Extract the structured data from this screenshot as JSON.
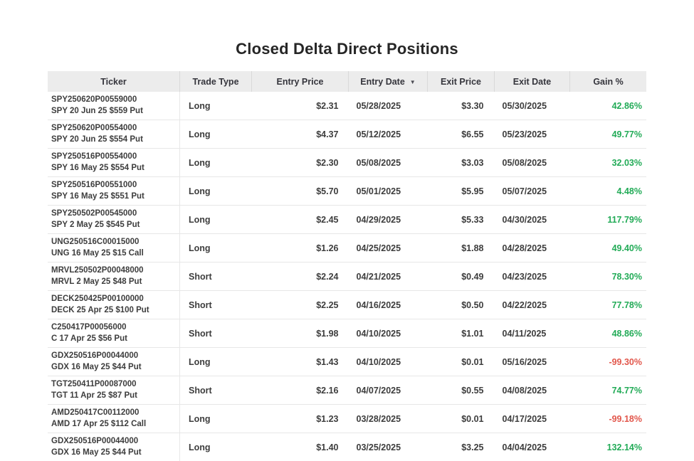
{
  "page": {
    "title": "Closed Delta Direct Positions"
  },
  "colors": {
    "header_bg": "#ececec",
    "header_divider": "#d9d9d9",
    "row_divider": "#e7e7e7",
    "text": "#3d3d3d",
    "header_text": "#35353c",
    "title": "#262626",
    "positive": "#22ab57",
    "negative": "#e2574c"
  },
  "table": {
    "sort_icon": "▼",
    "columns": [
      {
        "id": "ticker",
        "label": "Ticker"
      },
      {
        "id": "trade_type",
        "label": "Trade Type"
      },
      {
        "id": "entry_price",
        "label": "Entry Price"
      },
      {
        "id": "entry_date",
        "label": "Entry Date",
        "sorted": "desc"
      },
      {
        "id": "exit_price",
        "label": "Exit Price"
      },
      {
        "id": "exit_date",
        "label": "Exit Date"
      },
      {
        "id": "gain_pct",
        "label": "Gain %"
      }
    ],
    "rows": [
      {
        "ticker": "SPY250620P00559000",
        "description": "SPY 20 Jun 25 $559 Put",
        "trade_type": "Long",
        "entry_price": "$2.31",
        "entry_date": "05/28/2025",
        "exit_price": "$3.30",
        "exit_date": "05/30/2025",
        "gain_pct": "42.86%"
      },
      {
        "ticker": "SPY250620P00554000",
        "description": "SPY 20 Jun 25 $554 Put",
        "trade_type": "Long",
        "entry_price": "$4.37",
        "entry_date": "05/12/2025",
        "exit_price": "$6.55",
        "exit_date": "05/23/2025",
        "gain_pct": "49.77%"
      },
      {
        "ticker": "SPY250516P00554000",
        "description": "SPY 16 May 25 $554 Put",
        "trade_type": "Long",
        "entry_price": "$2.30",
        "entry_date": "05/08/2025",
        "exit_price": "$3.03",
        "exit_date": "05/08/2025",
        "gain_pct": "32.03%"
      },
      {
        "ticker": "SPY250516P00551000",
        "description": "SPY 16 May 25 $551 Put",
        "trade_type": "Long",
        "entry_price": "$5.70",
        "entry_date": "05/01/2025",
        "exit_price": "$5.95",
        "exit_date": "05/07/2025",
        "gain_pct": "4.48%"
      },
      {
        "ticker": "SPY250502P00545000",
        "description": "SPY 2 May 25 $545 Put",
        "trade_type": "Long",
        "entry_price": "$2.45",
        "entry_date": "04/29/2025",
        "exit_price": "$5.33",
        "exit_date": "04/30/2025",
        "gain_pct": "117.79%"
      },
      {
        "ticker": "UNG250516C00015000",
        "description": "UNG 16 May 25 $15 Call",
        "trade_type": "Long",
        "entry_price": "$1.26",
        "entry_date": "04/25/2025",
        "exit_price": "$1.88",
        "exit_date": "04/28/2025",
        "gain_pct": "49.40%"
      },
      {
        "ticker": "MRVL250502P00048000",
        "description": "MRVL 2 May 25 $48 Put",
        "trade_type": "Short",
        "entry_price": "$2.24",
        "entry_date": "04/21/2025",
        "exit_price": "$0.49",
        "exit_date": "04/23/2025",
        "gain_pct": "78.30%"
      },
      {
        "ticker": "DECK250425P00100000",
        "description": "DECK 25 Apr 25 $100 Put",
        "trade_type": "Short",
        "entry_price": "$2.25",
        "entry_date": "04/16/2025",
        "exit_price": "$0.50",
        "exit_date": "04/22/2025",
        "gain_pct": "77.78%"
      },
      {
        "ticker": "C250417P00056000",
        "description": "C 17 Apr 25 $56 Put",
        "trade_type": "Short",
        "entry_price": "$1.98",
        "entry_date": "04/10/2025",
        "exit_price": "$1.01",
        "exit_date": "04/11/2025",
        "gain_pct": "48.86%"
      },
      {
        "ticker": "GDX250516P00044000",
        "description": "GDX 16 May 25 $44 Put",
        "trade_type": "Long",
        "entry_price": "$1.43",
        "entry_date": "04/10/2025",
        "exit_price": "$0.01",
        "exit_date": "05/16/2025",
        "gain_pct": "-99.30%"
      },
      {
        "ticker": "TGT250411P00087000",
        "description": "TGT 11 Apr 25 $87 Put",
        "trade_type": "Short",
        "entry_price": "$2.16",
        "entry_date": "04/07/2025",
        "exit_price": "$0.55",
        "exit_date": "04/08/2025",
        "gain_pct": "74.77%"
      },
      {
        "ticker": "AMD250417C00112000",
        "description": "AMD 17 Apr 25 $112 Call",
        "trade_type": "Long",
        "entry_price": "$1.23",
        "entry_date": "03/28/2025",
        "exit_price": "$0.01",
        "exit_date": "04/17/2025",
        "gain_pct": "-99.18%"
      },
      {
        "ticker": "GDX250516P00044000",
        "description": "GDX 16 May 25 $44 Put",
        "trade_type": "Long",
        "entry_price": "$1.40",
        "entry_date": "03/25/2025",
        "exit_price": "$3.25",
        "exit_date": "04/04/2025",
        "gain_pct": "132.14%"
      }
    ]
  }
}
